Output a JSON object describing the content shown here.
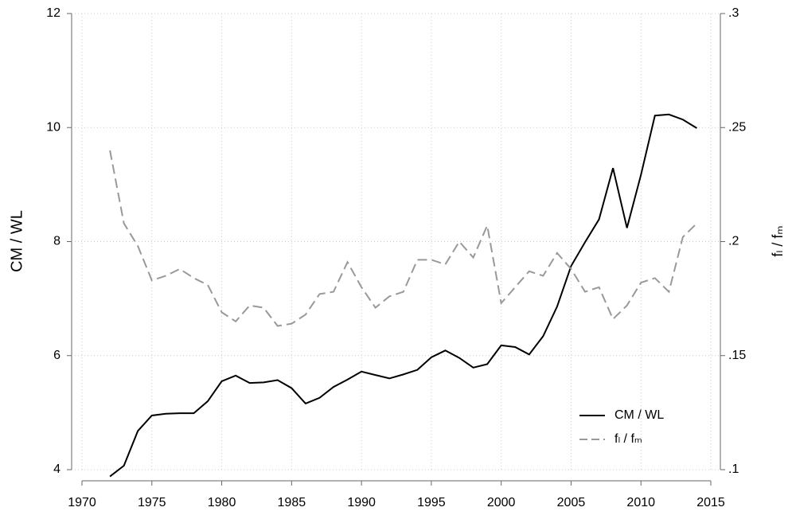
{
  "chart_data": {
    "type": "line",
    "x": [
      1972,
      1973,
      1974,
      1975,
      1976,
      1977,
      1978,
      1979,
      1980,
      1981,
      1982,
      1983,
      1984,
      1985,
      1986,
      1987,
      1988,
      1989,
      1990,
      1991,
      1992,
      1993,
      1994,
      1995,
      1996,
      1997,
      1998,
      1999,
      2000,
      2001,
      2002,
      2003,
      2004,
      2005,
      2006,
      2007,
      2008,
      2009,
      2010,
      2011,
      2012,
      2013,
      2014
    ],
    "xlim": [
      1970,
      2015
    ],
    "xticks": [
      1970,
      1975,
      1980,
      1985,
      1990,
      1995,
      2000,
      2005,
      2010,
      2015
    ],
    "ylabel": "CM / WL",
    "ylim": [
      4,
      12
    ],
    "yticks": [
      4,
      6,
      8,
      10,
      12
    ],
    "y2label": "fₗ / fₘ",
    "y2lim": [
      0.1,
      0.3
    ],
    "y2ticks": [
      {
        "value": 0.1,
        "label": ".1"
      },
      {
        "value": 0.15,
        "label": ".15"
      },
      {
        "value": 0.2,
        "label": ".2"
      },
      {
        "value": 0.25,
        "label": ".25"
      },
      {
        "value": 0.3,
        "label": ".3"
      }
    ],
    "grid": true,
    "legend": "lower right",
    "series": [
      {
        "name": "CM / WL",
        "color": "#000000",
        "dash": "solid",
        "values": [
          3.88,
          4.07,
          4.68,
          4.95,
          4.98,
          4.99,
          4.99,
          5.2,
          5.55,
          5.65,
          5.52,
          5.53,
          5.57,
          5.43,
          5.16,
          5.26,
          5.45,
          5.58,
          5.72,
          5.66,
          5.6,
          5.67,
          5.75,
          5.97,
          6.09,
          5.96,
          5.79,
          5.85,
          6.18,
          6.15,
          6.02,
          6.34,
          6.86,
          7.57,
          7.99,
          8.39,
          9.29,
          8.24,
          9.17,
          10.21,
          10.23,
          10.14,
          9.99
        ]
      },
      {
        "name": "fₗ / fₘ",
        "color": "#999999",
        "dash": "dashed",
        "axis": "y2",
        "values": [
          0.24,
          0.208,
          0.198,
          0.183,
          0.185,
          0.188,
          0.184,
          0.181,
          0.169,
          0.165,
          0.172,
          0.171,
          0.163,
          0.164,
          0.168,
          0.177,
          0.178,
          0.191,
          0.18,
          0.171,
          0.176,
          0.178,
          0.192,
          0.192,
          0.19,
          0.2,
          0.193,
          0.207,
          0.173,
          0.18,
          0.187,
          0.185,
          0.195,
          0.188,
          0.178,
          0.18,
          0.166,
          0.172,
          0.182,
          0.184,
          0.178,
          0.202,
          0.208
        ]
      }
    ]
  }
}
